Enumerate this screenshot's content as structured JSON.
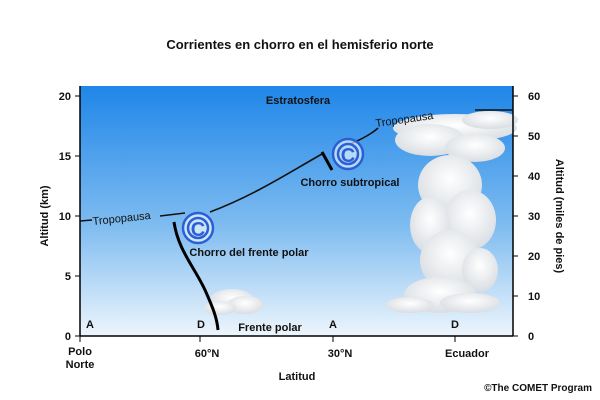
{
  "title": "Corrientes en chorro en el hemisferio norte",
  "left_axis": {
    "label": "Altitud (km)",
    "ticks": [
      "0",
      "5",
      "10",
      "15",
      "20"
    ]
  },
  "right_axis": {
    "label": "Altitud (miles de pies)",
    "ticks": [
      "0",
      "10",
      "20",
      "30",
      "40",
      "50",
      "60"
    ]
  },
  "x_axis": {
    "label": "Latitud",
    "ticks": [
      "Polo",
      "Norte",
      "60°N",
      "30°N",
      "Ecuador"
    ]
  },
  "labels": {
    "stratosphere": "Estratosfera",
    "tropopause_left": "Tropopausa",
    "tropopause_right": "Tropopausa",
    "subtropical_jet": "Chorro subtropical",
    "polar_jet": "Chorro del frente polar",
    "polar_front": "Frente polar",
    "markers": [
      "A",
      "D",
      "A",
      "D"
    ]
  },
  "jet_symbol": "C",
  "credit": "©The COMET Program",
  "colors": {
    "sky_top": "#2a8be8",
    "sky_bottom": "#e6f2fc",
    "jet": "#2a5fd6"
  }
}
